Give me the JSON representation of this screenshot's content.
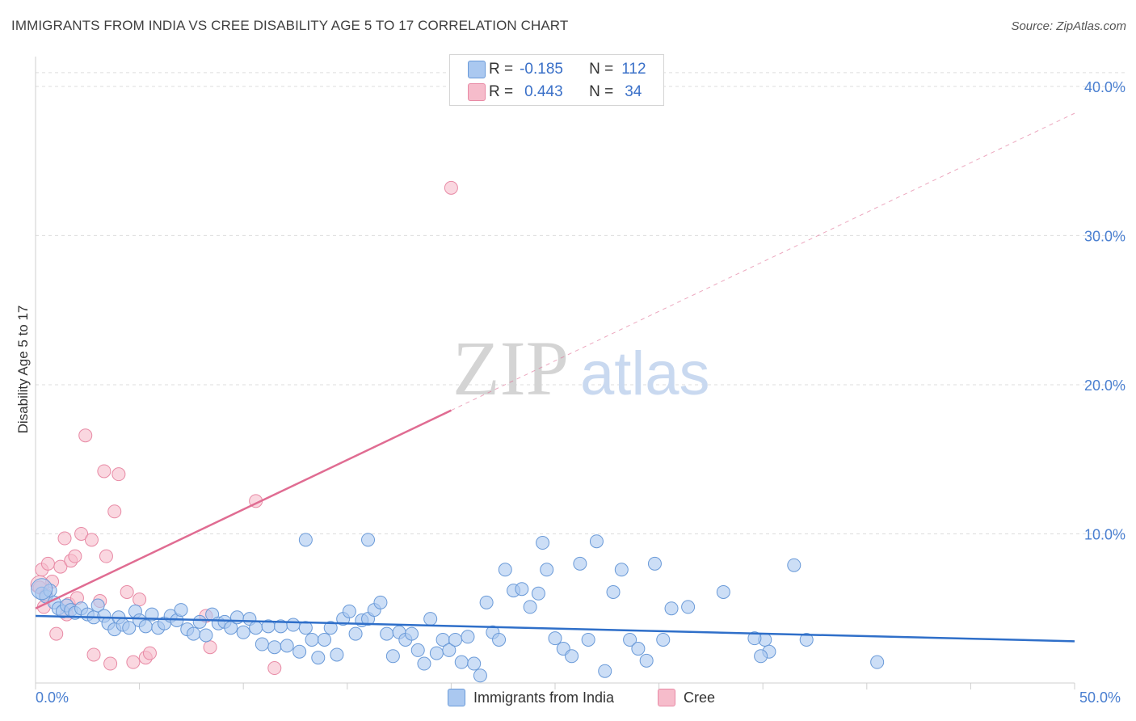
{
  "title": "IMMIGRANTS FROM INDIA VS CREE DISABILITY AGE 5 TO 17 CORRELATION CHART",
  "source": "Source: ZipAtlas.com",
  "watermark": {
    "zip": "ZIP",
    "atlas": "atlas"
  },
  "legend": {
    "rows": [
      {
        "r_label": "R =",
        "r_value": "-0.185",
        "n_label": "N =",
        "n_value": "112"
      },
      {
        "r_label": "R =",
        "r_value": "0.443",
        "n_label": "N =",
        "n_value": "34"
      }
    ]
  },
  "colors": {
    "india_fill": "#aac8f0",
    "india_stroke": "#6a9ad8",
    "india_line": "#2f6fc9",
    "cree_fill": "#f6bccb",
    "cree_stroke": "#e88aa5",
    "cree_line": "#e06c92",
    "grid": "#dddddd",
    "tick": "#4a7fd0"
  },
  "chart_data": {
    "type": "scatter",
    "title": "IMMIGRANTS FROM INDIA VS CREE DISABILITY AGE 5 TO 17 CORRELATION CHART",
    "xlabel": "",
    "ylabel": "Disability Age 5 to 17",
    "xlim": [
      0,
      50
    ],
    "ylim": [
      0,
      42
    ],
    "x_tick_labels": [
      "0.0%",
      "50.0%"
    ],
    "y_ticks": [
      10,
      20,
      30,
      40
    ],
    "y_tick_labels": [
      "10.0%",
      "20.0%",
      "30.0%",
      "40.0%"
    ],
    "series": [
      {
        "name": "Immigrants from India",
        "R": -0.185,
        "N": 112,
        "trend": {
          "x": [
            0,
            50
          ],
          "y": [
            4.5,
            2.8
          ],
          "dashed_from": null
        },
        "points": [
          [
            0.3,
            6.0
          ],
          [
            0.5,
            5.8
          ],
          [
            0.7,
            6.2
          ],
          [
            0.9,
            5.4
          ],
          [
            1.1,
            5.0
          ],
          [
            1.3,
            4.8
          ],
          [
            1.5,
            5.2
          ],
          [
            1.7,
            4.9
          ],
          [
            1.9,
            4.7
          ],
          [
            2.2,
            5.0
          ],
          [
            2.5,
            4.6
          ],
          [
            2.8,
            4.4
          ],
          [
            3.0,
            5.2
          ],
          [
            3.3,
            4.5
          ],
          [
            3.5,
            4.0
          ],
          [
            3.8,
            3.6
          ],
          [
            4.0,
            4.4
          ],
          [
            4.2,
            3.9
          ],
          [
            4.5,
            3.7
          ],
          [
            4.8,
            4.8
          ],
          [
            5.0,
            4.2
          ],
          [
            5.3,
            3.8
          ],
          [
            5.6,
            4.6
          ],
          [
            5.9,
            3.7
          ],
          [
            6.2,
            4.0
          ],
          [
            6.5,
            4.5
          ],
          [
            6.8,
            4.2
          ],
          [
            7.0,
            4.9
          ],
          [
            7.3,
            3.6
          ],
          [
            7.6,
            3.3
          ],
          [
            7.9,
            4.1
          ],
          [
            8.2,
            3.2
          ],
          [
            8.5,
            4.6
          ],
          [
            8.8,
            4.0
          ],
          [
            9.1,
            4.1
          ],
          [
            9.4,
            3.7
          ],
          [
            9.7,
            4.4
          ],
          [
            10.0,
            3.4
          ],
          [
            10.3,
            4.3
          ],
          [
            10.6,
            3.7
          ],
          [
            10.9,
            2.6
          ],
          [
            11.2,
            3.8
          ],
          [
            11.5,
            2.4
          ],
          [
            11.8,
            3.8
          ],
          [
            12.1,
            2.5
          ],
          [
            12.4,
            3.9
          ],
          [
            12.7,
            2.1
          ],
          [
            13.0,
            3.7
          ],
          [
            13.3,
            2.9
          ],
          [
            13.6,
            1.7
          ],
          [
            13.9,
            2.9
          ],
          [
            14.2,
            3.7
          ],
          [
            14.5,
            1.9
          ],
          [
            14.8,
            4.3
          ],
          [
            15.1,
            4.8
          ],
          [
            15.4,
            3.3
          ],
          [
            15.7,
            4.2
          ],
          [
            16.0,
            4.3
          ],
          [
            16.3,
            4.9
          ],
          [
            16.6,
            5.4
          ],
          [
            16.9,
            3.3
          ],
          [
            17.2,
            1.8
          ],
          [
            17.5,
            3.4
          ],
          [
            17.8,
            2.9
          ],
          [
            18.1,
            3.3
          ],
          [
            18.4,
            2.2
          ],
          [
            18.7,
            1.3
          ],
          [
            19.0,
            4.3
          ],
          [
            19.3,
            2.0
          ],
          [
            19.6,
            2.9
          ],
          [
            19.9,
            2.2
          ],
          [
            20.2,
            2.9
          ],
          [
            20.5,
            1.4
          ],
          [
            20.8,
            3.1
          ],
          [
            21.1,
            1.3
          ],
          [
            21.4,
            0.5
          ],
          [
            21.7,
            5.4
          ],
          [
            22.0,
            3.4
          ],
          [
            22.3,
            2.9
          ],
          [
            22.6,
            7.6
          ],
          [
            23.0,
            6.2
          ],
          [
            23.4,
            6.3
          ],
          [
            23.8,
            5.1
          ],
          [
            24.2,
            6.0
          ],
          [
            24.6,
            7.6
          ],
          [
            25.0,
            3.0
          ],
          [
            25.4,
            2.3
          ],
          [
            25.8,
            1.8
          ],
          [
            26.2,
            8.0
          ],
          [
            26.6,
            2.9
          ],
          [
            27.0,
            9.5
          ],
          [
            27.4,
            0.8
          ],
          [
            27.8,
            6.1
          ],
          [
            28.2,
            7.6
          ],
          [
            28.6,
            2.9
          ],
          [
            29.0,
            2.3
          ],
          [
            29.4,
            1.5
          ],
          [
            29.8,
            8.0
          ],
          [
            30.2,
            2.9
          ],
          [
            30.6,
            5.0
          ],
          [
            13.0,
            9.6
          ],
          [
            16.0,
            9.6
          ],
          [
            24.4,
            9.4
          ],
          [
            35.1,
            2.9
          ],
          [
            35.3,
            2.1
          ],
          [
            36.5,
            7.9
          ],
          [
            37.1,
            2.9
          ],
          [
            40.5,
            1.4
          ],
          [
            33.1,
            6.1
          ],
          [
            31.4,
            5.1
          ],
          [
            34.6,
            3.0
          ],
          [
            34.9,
            1.8
          ]
        ]
      },
      {
        "name": "Cree",
        "R": 0.443,
        "N": 34,
        "trend": {
          "x": [
            0,
            50
          ],
          "y": [
            5.0,
            38.2
          ],
          "solid_until_x": 20.0
        },
        "points": [
          [
            0.2,
            6.4
          ],
          [
            0.3,
            7.6
          ],
          [
            0.5,
            5.9
          ],
          [
            0.6,
            8.0
          ],
          [
            0.8,
            6.8
          ],
          [
            1.0,
            3.3
          ],
          [
            1.2,
            7.8
          ],
          [
            1.4,
            9.7
          ],
          [
            1.6,
            5.3
          ],
          [
            1.7,
            8.2
          ],
          [
            1.9,
            8.5
          ],
          [
            2.0,
            5.7
          ],
          [
            2.2,
            10.0
          ],
          [
            2.4,
            16.6
          ],
          [
            2.7,
            9.6
          ],
          [
            2.8,
            1.9
          ],
          [
            3.1,
            5.5
          ],
          [
            3.3,
            14.2
          ],
          [
            3.4,
            8.5
          ],
          [
            3.6,
            1.3
          ],
          [
            3.8,
            11.5
          ],
          [
            4.0,
            14.0
          ],
          [
            4.4,
            6.1
          ],
          [
            4.7,
            1.4
          ],
          [
            5.0,
            5.6
          ],
          [
            5.3,
            1.7
          ],
          [
            5.5,
            2.0
          ],
          [
            8.2,
            4.5
          ],
          [
            8.4,
            2.4
          ],
          [
            10.6,
            12.2
          ],
          [
            11.5,
            1.0
          ],
          [
            20.0,
            33.2
          ],
          [
            0.4,
            5.1
          ],
          [
            1.5,
            4.6
          ]
        ]
      }
    ]
  },
  "axis": {
    "ylabel": "Disability Age 5 to 17",
    "x_min_label": "0.0%",
    "x_max_label": "50.0%"
  },
  "bottom_legend": [
    "Immigrants from India",
    "Cree"
  ]
}
